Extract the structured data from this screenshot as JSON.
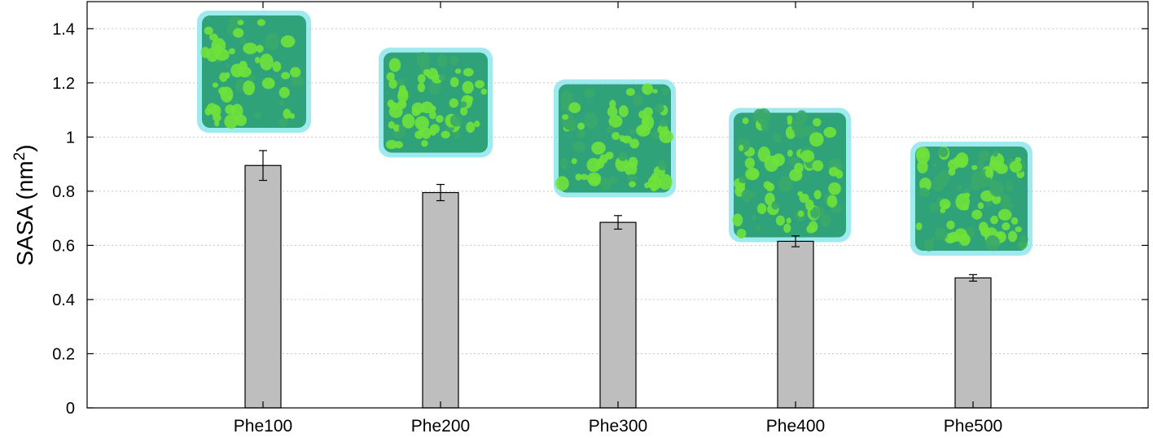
{
  "chart_data": {
    "type": "bar",
    "categories": [
      "Phe100",
      "Phe200",
      "Phe300",
      "Phe400",
      "Phe500"
    ],
    "values": [
      0.895,
      0.795,
      0.685,
      0.615,
      0.48
    ],
    "errors": [
      0.055,
      0.03,
      0.025,
      0.02,
      0.012
    ],
    "ylabel": "SASA (nm",
    "ylabel_sup": "2",
    "ylabel_close": ")",
    "ylim": [
      0,
      1.5
    ],
    "yticks": [
      0,
      0.2,
      0.4,
      0.6,
      0.8,
      1,
      1.2,
      1.4
    ],
    "ytick_labels": [
      "0",
      "0.2",
      "0.4",
      "0.6",
      "0.8",
      "1",
      "1.2",
      "1.4"
    ],
    "grid": true,
    "bar_color": "#bebebe",
    "inset_images": "molecular cluster renderings above each bar"
  },
  "colors": {
    "cluster_fill": "#6fe23a",
    "cluster_mid": "#2fa27a",
    "cluster_halo": "#7fe3ea"
  }
}
